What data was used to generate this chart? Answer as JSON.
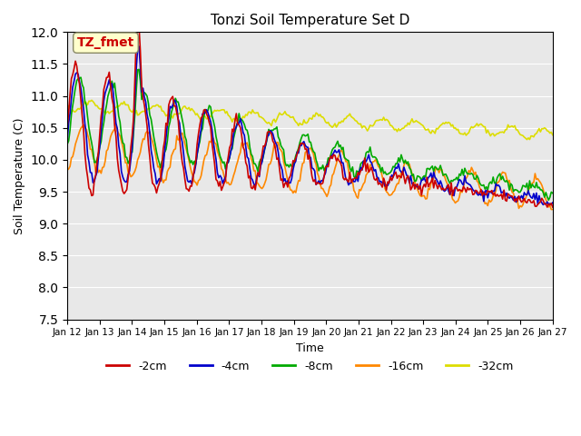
{
  "title": "Tonzi Soil Temperature Set D",
  "xlabel": "Time",
  "ylabel": "Soil Temperature (C)",
  "ylim": [
    7.5,
    12.0
  ],
  "xlim": [
    0,
    360
  ],
  "colors": {
    "-2cm": "#cc0000",
    "-4cm": "#0000cc",
    "-8cm": "#00aa00",
    "-16cm": "#ff8800",
    "-32cm": "#dddd00"
  },
  "legend_labels": [
    "-2cm",
    "-4cm",
    "-8cm",
    "-16cm",
    "-32cm"
  ],
  "xtick_labels": [
    "Jan 12",
    "Jan 13",
    "Jan 14",
    "Jan 15",
    "Jan 16",
    "Jan 17",
    "Jan 18",
    "Jan 19",
    "Jan 20",
    "Jan 21",
    "Jan 22",
    "Jan 23",
    "Jan 24",
    "Jan 25",
    "Jan 26",
    "Jan 27"
  ],
  "annotation_text": "TZ_fmet",
  "annotation_color": "#cc0000",
  "annotation_bg": "#ffffcc",
  "background_color": "#e8e8e8",
  "plot_bg": "#e8e8e8",
  "n_points": 360,
  "dt_hours": 1
}
